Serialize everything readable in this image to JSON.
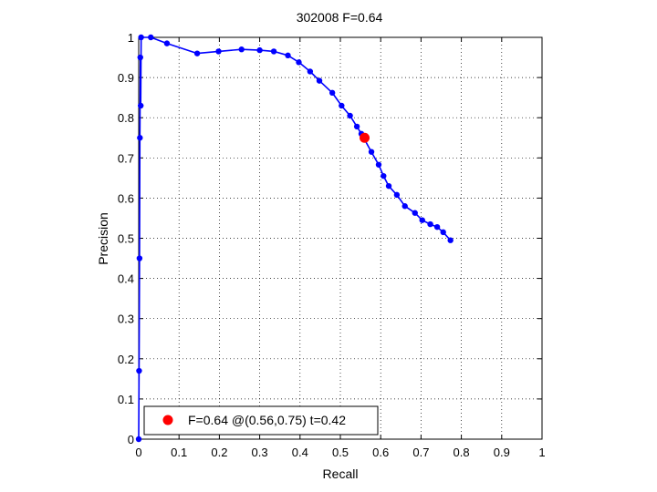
{
  "chart_data": {
    "type": "line",
    "title": "302008 F=0.64",
    "xlabel": "Recall",
    "ylabel": "Precision",
    "xlim": [
      0,
      1
    ],
    "ylim": [
      0,
      1
    ],
    "xticks": [
      "0",
      "0.1",
      "0.2",
      "0.3",
      "0.4",
      "0.5",
      "0.6",
      "0.7",
      "0.8",
      "0.9",
      "1"
    ],
    "yticks": [
      "0",
      "0.1",
      "0.2",
      "0.3",
      "0.4",
      "0.5",
      "0.6",
      "0.7",
      "0.8",
      "0.9",
      "1"
    ],
    "grid": true,
    "legend_position": "bottom-left",
    "series": [
      {
        "color": "#0000ff",
        "x": [
          0.0,
          0.001,
          0.002,
          0.003,
          0.004,
          0.005,
          0.006,
          0.03,
          0.07,
          0.145,
          0.198,
          0.255,
          0.3,
          0.335,
          0.37,
          0.397,
          0.425,
          0.448,
          0.48,
          0.503,
          0.524,
          0.541,
          0.552,
          0.577,
          0.595,
          0.607,
          0.62,
          0.64,
          0.66,
          0.685,
          0.703,
          0.723,
          0.74,
          0.755,
          0.773
        ],
        "y": [
          0.0,
          0.17,
          0.45,
          0.75,
          0.95,
          0.83,
          1.0,
          1.0,
          0.985,
          0.96,
          0.965,
          0.97,
          0.968,
          0.965,
          0.955,
          0.938,
          0.915,
          0.892,
          0.862,
          0.83,
          0.805,
          0.778,
          0.76,
          0.715,
          0.683,
          0.655,
          0.63,
          0.608,
          0.58,
          0.563,
          0.545,
          0.535,
          0.528,
          0.515,
          0.495
        ]
      }
    ],
    "highlight": {
      "x": 0.56,
      "y": 0.75,
      "color": "#ff0000"
    },
    "legend_label": "F=0.64 @(0.56,0.75) t=0.42"
  }
}
